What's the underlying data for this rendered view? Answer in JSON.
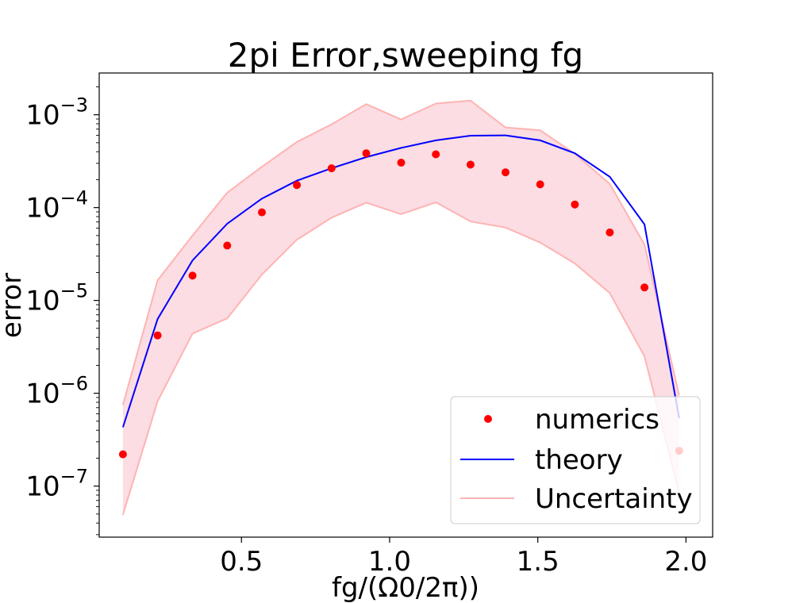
{
  "chart_data": {
    "type": "line",
    "title": "2pi Error,sweeping fg",
    "xlabel": "fg/(Ω0/2π))",
    "ylabel": "error",
    "xlim": [
      0.02,
      2.09
    ],
    "ylim_log10": [
      -7.55,
      -2.55
    ],
    "yscale": "log",
    "x_ticks": [
      {
        "value": 0.5,
        "label": "0.5"
      },
      {
        "value": 1.0,
        "label": "1.0"
      },
      {
        "value": 1.5,
        "label": "1.5"
      },
      {
        "value": 2.0,
        "label": "2.0"
      }
    ],
    "y_ticks": [
      {
        "exp": -3,
        "base": "10",
        "sup": "−3"
      },
      {
        "exp": -4,
        "base": "10",
        "sup": "−4"
      },
      {
        "exp": -5,
        "base": "10",
        "sup": "−5"
      },
      {
        "exp": -6,
        "base": "10",
        "sup": "−6"
      },
      {
        "exp": -7,
        "base": "10",
        "sup": "−7"
      }
    ],
    "x": [
      0.1,
      0.217,
      0.335,
      0.452,
      0.569,
      0.687,
      0.804,
      0.921,
      1.039,
      1.156,
      1.273,
      1.391,
      1.508,
      1.625,
      1.743,
      1.86,
      1.977
    ],
    "series": [
      {
        "name": "numerics",
        "kind": "scatter",
        "color": "#ff0000",
        "y": [
          2.2e-07,
          4.2e-06,
          1.85e-05,
          3.9e-05,
          8.9e-05,
          0.000175,
          0.000265,
          0.000385,
          0.000305,
          0.000375,
          0.00029,
          0.00024,
          0.000178,
          0.000108,
          5.4e-05,
          1.38e-05,
          2.4e-07
        ]
      },
      {
        "name": "theory",
        "kind": "line",
        "color": "#0000ff",
        "y": [
          4.3e-07,
          6.3e-06,
          2.7e-05,
          6.7e-05,
          0.000125,
          0.000195,
          0.000265,
          0.00035,
          0.00044,
          0.00053,
          0.000595,
          0.0006,
          0.00053,
          0.000385,
          0.000215,
          6.6e-05,
          5.4e-07
        ]
      },
      {
        "name": "Uncertainty",
        "kind": "band",
        "color": "#ffb3b3",
        "fill": "#fbdde3",
        "upper": [
          7.5e-07,
          1.65e-05,
          5e-05,
          0.000145,
          0.000275,
          0.00051,
          0.00079,
          0.0013,
          0.00089,
          0.00132,
          0.00142,
          0.00073,
          0.00068,
          0.00038,
          0.00018,
          4e-05,
          9.5e-07
        ],
        "lower": [
          4.9e-08,
          8.2e-07,
          4.4e-06,
          6.4e-06,
          1.9e-05,
          4.5e-05,
          7.8e-05,
          0.000113,
          8.5e-05,
          0.000114,
          7.1e-05,
          6.1e-05,
          4.2e-05,
          2.5e-05,
          1.2e-05,
          2.5e-06,
          8.5e-08
        ]
      }
    ],
    "legend": {
      "position": "lower-right",
      "entries": [
        "numerics",
        "theory",
        "Uncertainty"
      ]
    },
    "grid": false
  }
}
